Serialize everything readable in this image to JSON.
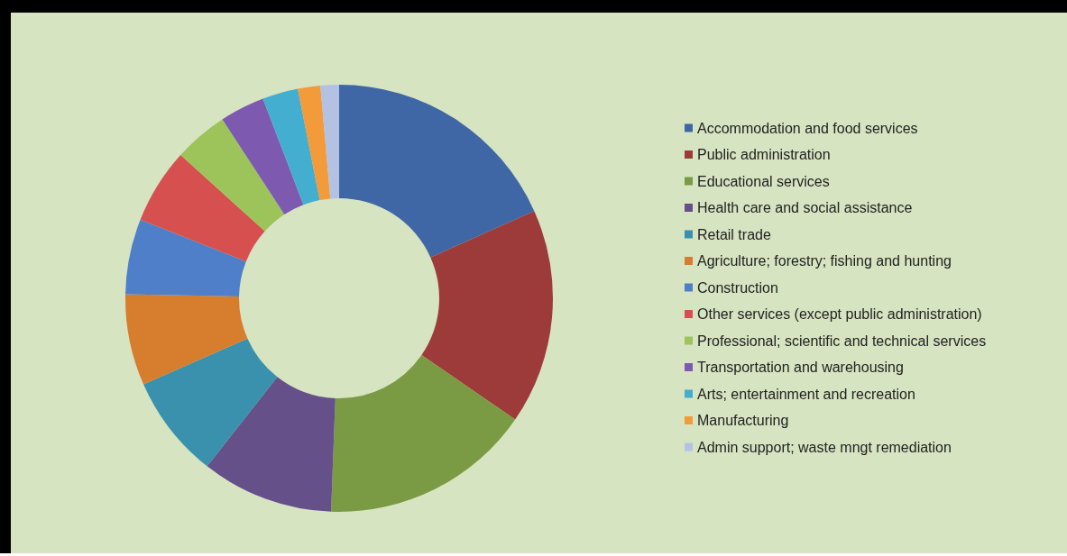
{
  "chart_data": {
    "type": "donut",
    "legend": "right",
    "categories": [
      "Accommodation and food services",
      "Public administration",
      "Educational services",
      "Health care and social assistance",
      "Retail trade",
      "Agriculture; forestry; fishing and hunting",
      "Construction",
      "Other services (except public administration)",
      "Professional; scientific and technical services",
      "Transportation and warehousing",
      "Arts; entertainment and recreation",
      "Manufacturing",
      "Admin support; waste mngt remediation"
    ],
    "values": [
      18.3,
      16.3,
      16.0,
      10.0,
      7.8,
      6.9,
      5.7,
      5.7,
      4.1,
      3.4,
      2.7,
      1.7,
      1.4
    ],
    "colors": [
      "#3f67a6",
      "#9c3b3a",
      "#7b9a44",
      "#65508a",
      "#3a91ad",
      "#d77d2e",
      "#4f7fc8",
      "#d65050",
      "#9dc45a",
      "#7d5ab0",
      "#43aed0",
      "#f39a3a",
      "#b3c2e2"
    ]
  }
}
